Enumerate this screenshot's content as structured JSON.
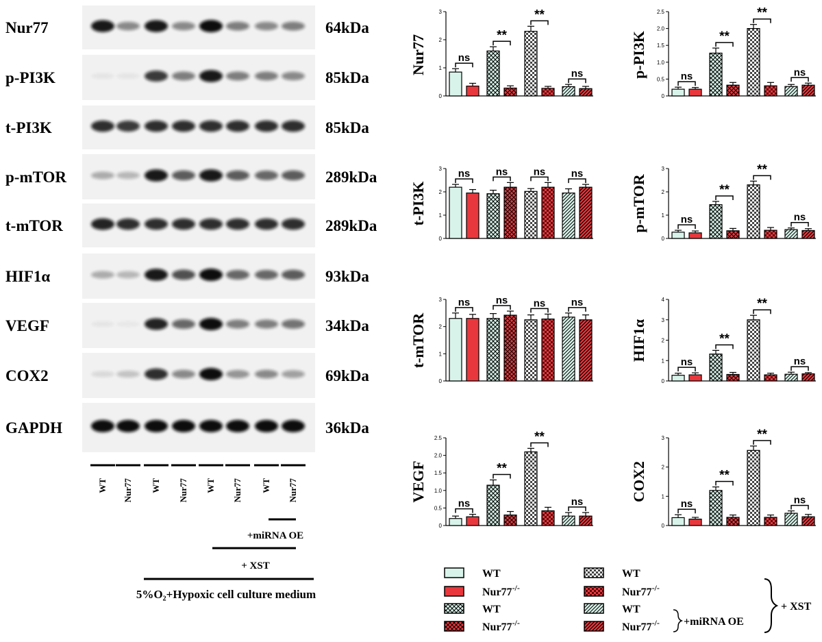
{
  "colors": {
    "light": "#d8f3ea",
    "red": "#e8383d",
    "grey": "#e6e6e6",
    "edge": "#000000"
  },
  "blot": {
    "rows": [
      {
        "protein": "Nur77",
        "kda": "64kDa",
        "bands": [
          0.95,
          0.45,
          0.95,
          0.45,
          1.0,
          0.5,
          0.45,
          0.5
        ]
      },
      {
        "protein": "p-PI3K",
        "kda": "85kDa",
        "bands": [
          0.05,
          0.05,
          0.8,
          0.5,
          0.95,
          0.5,
          0.5,
          0.45
        ]
      },
      {
        "protein": "t-PI3K",
        "kda": "85kDa",
        "bands": [
          0.85,
          0.8,
          0.85,
          0.85,
          0.85,
          0.85,
          0.85,
          0.85
        ]
      },
      {
        "protein": "p-mTOR",
        "kda": "289kDa",
        "bands": [
          0.3,
          0.25,
          0.95,
          0.65,
          0.95,
          0.65,
          0.6,
          0.65
        ]
      },
      {
        "protein": "t-mTOR",
        "kda": "289kDa",
        "bands": [
          0.9,
          0.85,
          0.85,
          0.85,
          0.85,
          0.85,
          0.85,
          0.85
        ]
      },
      {
        "protein": "HIF1α",
        "kda": "93kDa",
        "bands": [
          0.3,
          0.25,
          0.95,
          0.7,
          1.0,
          0.6,
          0.6,
          0.65
        ]
      },
      {
        "protein": "VEGF",
        "kda": "34kDa",
        "bands": [
          0.05,
          0.02,
          0.9,
          0.6,
          1.0,
          0.5,
          0.5,
          0.55
        ]
      },
      {
        "protein": "COX2",
        "kda": "69kDa",
        "bands": [
          0.1,
          0.2,
          0.85,
          0.45,
          1.0,
          0.4,
          0.45,
          0.35
        ]
      },
      {
        "protein": "GAPDH",
        "kda": "36kDa",
        "bands": [
          1.0,
          1.0,
          1.0,
          1.0,
          1.0,
          1.0,
          1.0,
          1.0
        ]
      }
    ],
    "lanes": [
      "WT",
      "Nur77",
      "WT",
      "Nur77",
      "WT",
      "Nur77",
      "WT",
      "Nur77"
    ],
    "conditions": {
      "mirna": "+miRNA OE",
      "xst": "+ XST",
      "hypoxic": "5%O₂+Hypoxic cell culture medium"
    }
  },
  "chart_data": [
    {
      "type": "bar",
      "ylabel": "Nur77",
      "ylim": [
        0,
        3
      ],
      "yticks": [
        0,
        1,
        2,
        3
      ],
      "values": [
        0.85,
        0.35,
        1.6,
        0.28,
        2.3,
        0.27,
        0.33,
        0.26
      ],
      "errors": [
        0.12,
        0.1,
        0.15,
        0.08,
        0.18,
        0.07,
        0.08,
        0.08
      ],
      "annotations": [
        {
          "pair": [
            0,
            1
          ],
          "text": "ns"
        },
        {
          "pair": [
            2,
            3
          ],
          "text": "**"
        },
        {
          "pair": [
            4,
            5
          ],
          "text": "**"
        },
        {
          "pair": [
            6,
            7
          ],
          "text": "ns"
        }
      ]
    },
    {
      "type": "bar",
      "ylabel": "p-PI3K",
      "ylim": [
        0,
        2.5
      ],
      "yticks": [
        0,
        0.5,
        1.0,
        1.5,
        2.0,
        2.5
      ],
      "values": [
        0.2,
        0.2,
        1.27,
        0.32,
        2.0,
        0.3,
        0.28,
        0.32
      ],
      "errors": [
        0.06,
        0.05,
        0.15,
        0.08,
        0.12,
        0.1,
        0.06,
        0.06
      ],
      "annotations": [
        {
          "pair": [
            0,
            1
          ],
          "text": "ns"
        },
        {
          "pair": [
            2,
            3
          ],
          "text": "**"
        },
        {
          "pair": [
            4,
            5
          ],
          "text": "**"
        },
        {
          "pair": [
            6,
            7
          ],
          "text": "ns"
        }
      ]
    },
    {
      "type": "bar",
      "ylabel": "t-PI3K",
      "ylim": [
        0,
        3
      ],
      "yticks": [
        0,
        1,
        2,
        3
      ],
      "values": [
        2.2,
        1.95,
        1.92,
        2.2,
        2.02,
        2.2,
        1.95,
        2.2
      ],
      "errors": [
        0.12,
        0.15,
        0.15,
        0.2,
        0.12,
        0.2,
        0.18,
        0.12
      ],
      "annotations": [
        {
          "pair": [
            0,
            1
          ],
          "text": "ns"
        },
        {
          "pair": [
            2,
            3
          ],
          "text": "ns"
        },
        {
          "pair": [
            4,
            5
          ],
          "text": "ns"
        },
        {
          "pair": [
            6,
            7
          ],
          "text": "ns"
        }
      ]
    },
    {
      "type": "bar",
      "ylabel": "p-mTOR",
      "ylim": [
        0,
        3
      ],
      "yticks": [
        0,
        1,
        2,
        3
      ],
      "values": [
        0.27,
        0.24,
        1.45,
        0.33,
        2.3,
        0.35,
        0.38,
        0.34
      ],
      "errors": [
        0.08,
        0.08,
        0.14,
        0.1,
        0.16,
        0.12,
        0.07,
        0.08
      ],
      "annotations": [
        {
          "pair": [
            0,
            1
          ],
          "text": "ns"
        },
        {
          "pair": [
            2,
            3
          ],
          "text": "**"
        },
        {
          "pair": [
            4,
            5
          ],
          "text": "**"
        },
        {
          "pair": [
            6,
            7
          ],
          "text": "ns"
        }
      ]
    },
    {
      "type": "bar",
      "ylabel": "t-mTOR",
      "ylim": [
        0,
        3
      ],
      "yticks": [
        0,
        1,
        2,
        3
      ],
      "values": [
        2.3,
        2.3,
        2.3,
        2.42,
        2.25,
        2.28,
        2.35,
        2.25
      ],
      "errors": [
        0.2,
        0.15,
        0.18,
        0.15,
        0.18,
        0.18,
        0.15,
        0.18
      ],
      "annotations": [
        {
          "pair": [
            0,
            1
          ],
          "text": "ns"
        },
        {
          "pair": [
            2,
            3
          ],
          "text": "ns"
        },
        {
          "pair": [
            4,
            5
          ],
          "text": "ns"
        },
        {
          "pair": [
            6,
            7
          ],
          "text": "ns"
        }
      ]
    },
    {
      "type": "bar",
      "ylabel": "HIF1α",
      "ylim": [
        0,
        4
      ],
      "yticks": [
        0,
        1,
        2,
        3,
        4
      ],
      "values": [
        0.28,
        0.3,
        1.32,
        0.32,
        3.0,
        0.3,
        0.33,
        0.35
      ],
      "errors": [
        0.1,
        0.1,
        0.18,
        0.1,
        0.22,
        0.08,
        0.1,
        0.06
      ],
      "annotations": [
        {
          "pair": [
            0,
            1
          ],
          "text": "ns"
        },
        {
          "pair": [
            2,
            3
          ],
          "text": "**"
        },
        {
          "pair": [
            4,
            5
          ],
          "text": "**"
        },
        {
          "pair": [
            6,
            7
          ],
          "text": "ns"
        }
      ]
    },
    {
      "type": "bar",
      "ylabel": "VEGF",
      "ylim": [
        0,
        2.5
      ],
      "yticks": [
        0,
        0.5,
        1.0,
        1.5,
        2.0,
        2.5
      ],
      "values": [
        0.2,
        0.25,
        1.15,
        0.3,
        2.1,
        0.42,
        0.27,
        0.27
      ],
      "errors": [
        0.07,
        0.07,
        0.15,
        0.1,
        0.1,
        0.1,
        0.1,
        0.1
      ],
      "annotations": [
        {
          "pair": [
            0,
            1
          ],
          "text": "ns"
        },
        {
          "pair": [
            2,
            3
          ],
          "text": "**"
        },
        {
          "pair": [
            4,
            5
          ],
          "text": "**"
        },
        {
          "pair": [
            6,
            7
          ],
          "text": "ns"
        }
      ]
    },
    {
      "type": "bar",
      "ylabel": "COX2",
      "ylim": [
        0,
        3
      ],
      "yticks": [
        0,
        1,
        2,
        3
      ],
      "values": [
        0.27,
        0.22,
        1.2,
        0.28,
        2.57,
        0.28,
        0.42,
        0.3
      ],
      "errors": [
        0.1,
        0.06,
        0.12,
        0.08,
        0.15,
        0.08,
        0.08,
        0.08
      ],
      "annotations": [
        {
          "pair": [
            0,
            1
          ],
          "text": "ns"
        },
        {
          "pair": [
            2,
            3
          ],
          "text": "**"
        },
        {
          "pair": [
            4,
            5
          ],
          "text": "**"
        },
        {
          "pair": [
            6,
            7
          ],
          "text": "ns"
        }
      ]
    }
  ],
  "legend": {
    "items": [
      {
        "label": "WT",
        "sup": "",
        "color": "light",
        "pattern": "solid"
      },
      {
        "label": "Nur77",
        "sup": "-/-",
        "color": "red",
        "pattern": "solid"
      },
      {
        "label": "WT",
        "sup": "",
        "color": "light",
        "pattern": "cross"
      },
      {
        "label": "Nur77",
        "sup": "-/-",
        "color": "red",
        "pattern": "cross"
      },
      {
        "label": "WT",
        "sup": "",
        "color": "grey",
        "pattern": "check"
      },
      {
        "label": "Nur77",
        "sup": "-/-",
        "color": "red",
        "pattern": "check"
      },
      {
        "label": "WT",
        "sup": "",
        "color": "light",
        "pattern": "diag"
      },
      {
        "label": "Nur77",
        "sup": "-/-",
        "color": "red",
        "pattern": "diag"
      }
    ],
    "group_xst": "+ XST",
    "group_mirna": "+miRNA OE"
  }
}
